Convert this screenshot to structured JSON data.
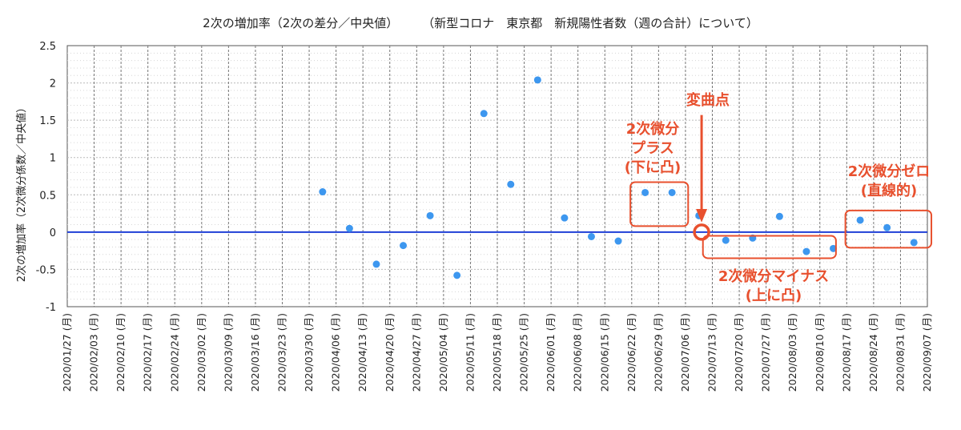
{
  "title": "2次の増加率（2次の差分／中央値）　　　（新型コロナ　東京都　新規陽性者数（週の合計）について）",
  "ylabel": "2次の増加率（2次微分係数／中央値）",
  "chart_data": {
    "type": "scatter",
    "ylim": [
      -1,
      2.5
    ],
    "y_ticks": [
      "2.5",
      "2",
      "1.5",
      "1",
      "0.5",
      "0",
      "-0.5",
      "-1"
    ],
    "y_tick_values": [
      2.5,
      2,
      1.5,
      1,
      0.5,
      0,
      -0.5,
      -1
    ],
    "grid": true,
    "categories": [
      "2020/01/27 (月)",
      "2020/02/03 (月)",
      "2020/02/10 (月)",
      "2020/02/17 (月)",
      "2020/02/24 (月)",
      "2020/03/02 (月)",
      "2020/03/09 (月)",
      "2020/03/16 (月)",
      "2020/03/23 (月)",
      "2020/03/30 (月)",
      "2020/04/06 (月)",
      "2020/04/13 (月)",
      "2020/04/20 (月)",
      "2020/04/27 (月)",
      "2020/05/04 (月)",
      "2020/05/11 (月)",
      "2020/05/18 (月)",
      "2020/05/25 (月)",
      "2020/06/01 (月)",
      "2020/06/08 (月)",
      "2020/06/15 (月)",
      "2020/06/22 (月)",
      "2020/06/29 (月)",
      "2020/07/06 (月)",
      "2020/07/13 (月)",
      "2020/07/20 (月)",
      "2020/07/27 (月)",
      "2020/08/03 (月)",
      "2020/08/10 (月)",
      "2020/08/17 (月)",
      "2020/08/24 (月)",
      "2020/08/31 (月)",
      "2020/09/07 (月)"
    ],
    "points": [
      {
        "x": 9.5,
        "y": 0.54
      },
      {
        "x": 10.5,
        "y": 0.05
      },
      {
        "x": 11.5,
        "y": -0.43
      },
      {
        "x": 12.5,
        "y": -0.18
      },
      {
        "x": 13.5,
        "y": 0.22
      },
      {
        "x": 14.5,
        "y": -0.58
      },
      {
        "x": 15.5,
        "y": 1.59
      },
      {
        "x": 16.5,
        "y": 0.64
      },
      {
        "x": 17.5,
        "y": 2.04
      },
      {
        "x": 18.5,
        "y": 0.19
      },
      {
        "x": 19.5,
        "y": -0.06
      },
      {
        "x": 20.5,
        "y": -0.12
      },
      {
        "x": 21.5,
        "y": 0.53
      },
      {
        "x": 22.5,
        "y": 0.53
      },
      {
        "x": 23.5,
        "y": 0.22
      },
      {
        "x": 24.5,
        "y": -0.11
      },
      {
        "x": 25.5,
        "y": -0.08
      },
      {
        "x": 26.5,
        "y": 0.21
      },
      {
        "x": 27.5,
        "y": -0.26
      },
      {
        "x": 28.5,
        "y": -0.22
      },
      {
        "x": 29.5,
        "y": 0.16
      },
      {
        "x": 30.5,
        "y": 0.06
      },
      {
        "x": 31.5,
        "y": -0.14
      }
    ],
    "reference_line": {
      "y": 0,
      "color": "#1f3fd6"
    },
    "point_color": "#3d97ef",
    "annotation_color": "#e8502e",
    "annotations": {
      "inflection": "変曲点",
      "plus": "2次微分\nプラス\n(下に凸)",
      "minus": "2次微分マイナス\n(上に凸)",
      "zero": "2次微分ゼロ\n(直線的)"
    }
  }
}
